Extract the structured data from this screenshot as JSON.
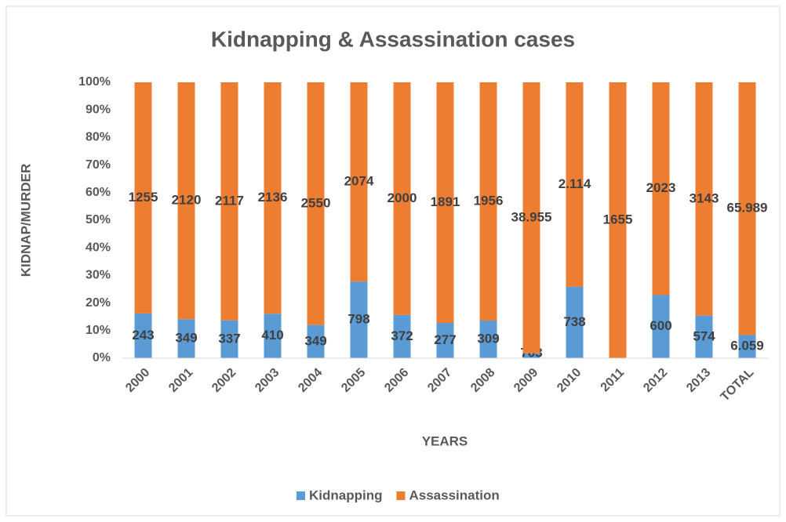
{
  "chart_data": {
    "type": "bar",
    "stacking": "percent",
    "title": "Kidnapping & Assassination cases",
    "x_label": "YEARS",
    "y_label": "KIDNAP/MURDER",
    "categories": [
      "2000",
      "2001",
      "2002",
      "2003",
      "2004",
      "2005",
      "2006",
      "2007",
      "2008",
      "2009",
      "2010",
      "2011",
      "2012",
      "2013",
      "TOTAL"
    ],
    "series": [
      {
        "name": "Kidnapping",
        "color": "#5b9bd5",
        "values": [
          243,
          349,
          337,
          410,
          349,
          798,
          372,
          277,
          309,
          703,
          738,
          0,
          600,
          574,
          6059
        ],
        "value_labels": [
          "243",
          "349",
          "337",
          "410",
          "349",
          "798",
          "372",
          "277",
          "309",
          "703",
          "738",
          "0",
          "600",
          "574",
          "6.059"
        ]
      },
      {
        "name": "Assassination",
        "color": "#ed7d31",
        "values": [
          1255,
          2120,
          2117,
          2136,
          2550,
          2074,
          2000,
          1891,
          1956,
          38955,
          2114,
          1655,
          2023,
          3143,
          65989
        ],
        "value_labels": [
          "1255",
          "2120",
          "2117",
          "2136",
          "2550",
          "2074",
          "2000",
          "1891",
          "1956",
          "38.955",
          "2.114",
          "1655",
          "2023",
          "3143",
          "65.989"
        ]
      }
    ],
    "ylim": [
      0,
      100
    ],
    "yticks": [
      {
        "value": 0,
        "label": "0%"
      },
      {
        "value": 10,
        "label": "10%"
      },
      {
        "value": 20,
        "label": "20%"
      },
      {
        "value": 30,
        "label": "30%"
      },
      {
        "value": 40,
        "label": "40%"
      },
      {
        "value": 50,
        "label": "50%"
      },
      {
        "value": 60,
        "label": "60%"
      },
      {
        "value": 70,
        "label": "70%"
      },
      {
        "value": 80,
        "label": "80%"
      },
      {
        "value": 90,
        "label": "90%"
      },
      {
        "value": 100,
        "label": "100%"
      }
    ],
    "grid": false,
    "legend": "bottom"
  }
}
